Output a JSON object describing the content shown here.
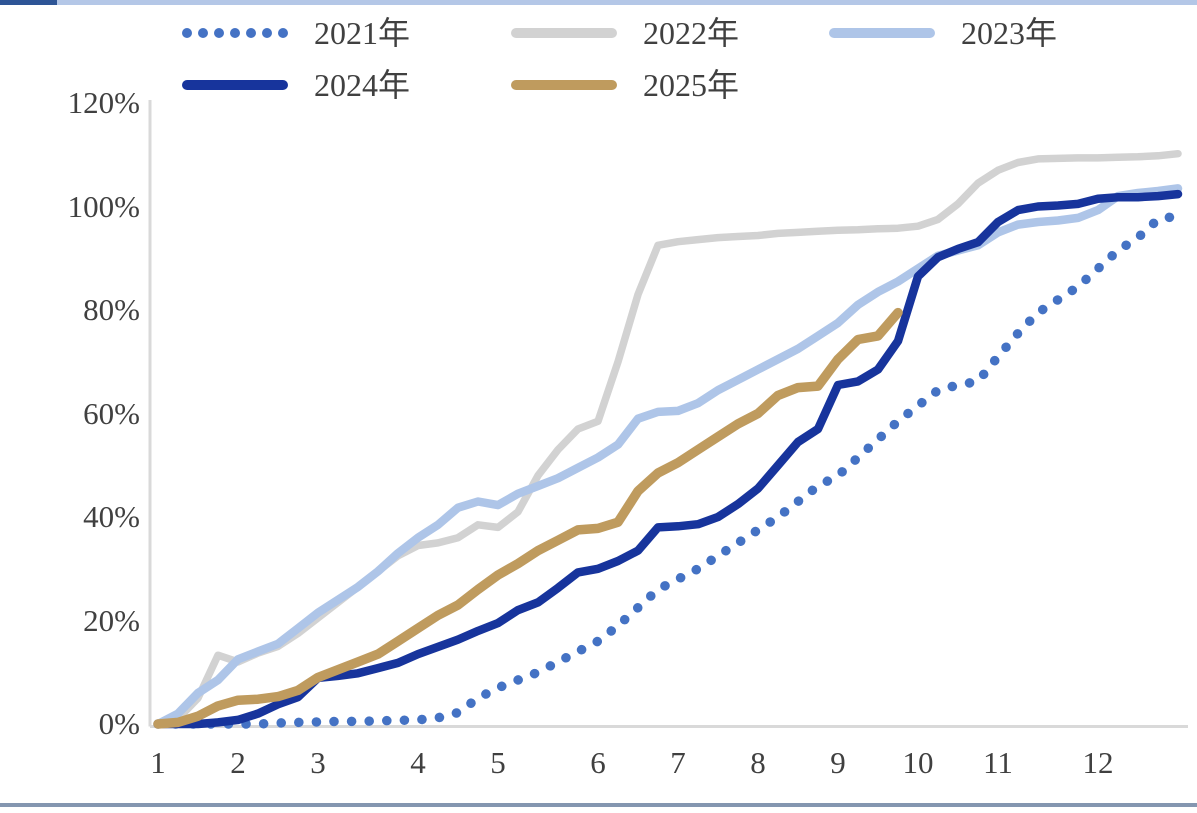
{
  "frame": {
    "top_bar_color": "#b4c7e7",
    "top_bar_accent_color": "#2e5596",
    "bottom_bar_color": "#8496b0",
    "axis_color": "#d9d9d9",
    "text_color": "#404040",
    "background": "#ffffff"
  },
  "chart_data": {
    "type": "line",
    "title": "",
    "xlabel": "",
    "ylabel": "",
    "x_axis": {
      "tick_labels": [
        "1",
        "2",
        "3",
        "4",
        "5",
        "6",
        "7",
        "8",
        "9",
        "10",
        "11",
        "12"
      ],
      "tick_weeks": [
        0,
        4,
        8,
        13,
        17,
        22,
        26,
        30,
        34,
        38,
        42,
        47
      ],
      "unit": "month-of-year, weekly samples"
    },
    "y_axis": {
      "tick_labels": [
        "0%",
        "20%",
        "40%",
        "60%",
        "80%",
        "100%",
        "120%"
      ],
      "tick_values": [
        0,
        20,
        40,
        60,
        80,
        100,
        120
      ],
      "range": [
        0,
        120
      ],
      "grid": false
    },
    "legend": {
      "position": "top-left",
      "rows": [
        [
          "2021年",
          "2022年",
          "2023年"
        ],
        [
          "2024年",
          "2025年"
        ]
      ]
    },
    "series": [
      {
        "name": "2021年",
        "color": "#4472c4",
        "style": "dotted",
        "line_width": 9.5,
        "weekly_values": [
          0,
          0,
          0,
          0,
          0,
          0,
          0.2,
          0.3,
          0.4,
          0.5,
          0.5,
          0.6,
          0.7,
          0.8,
          1.2,
          2.2,
          5,
          7,
          8.5,
          10,
          12,
          14,
          16,
          19,
          22.5,
          26,
          28,
          30,
          32.5,
          35,
          37.5,
          40,
          43,
          46,
          48,
          51.5,
          55,
          58.5,
          61.5,
          64.5,
          65.5,
          66.2,
          71,
          75.5,
          79.5,
          82,
          84.5,
          88,
          91.5,
          94,
          97.5,
          98.2
        ]
      },
      {
        "name": "2022年",
        "color": "#d2d2d2",
        "style": "solid",
        "line_width": 7.5,
        "weekly_values": [
          0,
          1,
          5,
          13.3,
          12,
          13.7,
          15,
          17.5,
          20.5,
          23.5,
          26.5,
          29.5,
          32.5,
          34.5,
          35,
          36,
          38.5,
          38,
          41,
          48,
          53,
          57,
          58.5,
          70,
          83,
          92.5,
          93.2,
          93.6,
          94,
          94.2,
          94.4,
          94.8,
          95,
          95.2,
          95.4,
          95.5,
          95.7,
          95.8,
          96.2,
          97.5,
          100.5,
          104.5,
          107,
          108.5,
          109.2,
          109.3,
          109.4,
          109.4,
          109.5,
          109.6,
          109.8,
          110.2
        ]
      },
      {
        "name": "2023年",
        "color": "#aec5e8",
        "style": "solid",
        "line_width": 8.5,
        "weekly_values": [
          0,
          2,
          6,
          8.5,
          12.5,
          14,
          15.5,
          18.5,
          21.5,
          24,
          26.5,
          29.5,
          33,
          36,
          38.5,
          41.8,
          43,
          42.3,
          44.5,
          46,
          47.5,
          49.5,
          51.5,
          54,
          59,
          60.3,
          60.5,
          62,
          64.5,
          66.5,
          68.5,
          70.5,
          72.5,
          75,
          77.5,
          81,
          83.5,
          85.5,
          88,
          90.5,
          91.5,
          92.5,
          95,
          96.5,
          97,
          97.3,
          97.8,
          99.3,
          102,
          102.6,
          103,
          103.5
        ]
      },
      {
        "name": "2024年",
        "color": "#17349c",
        "style": "solid",
        "line_width": 8.5,
        "weekly_values": [
          0,
          0,
          0,
          0.3,
          0.8,
          2,
          3.8,
          5.2,
          8.9,
          9.3,
          9.8,
          10.8,
          11.8,
          13.5,
          14.9,
          16.3,
          18,
          19.5,
          22,
          23.5,
          26.3,
          29.3,
          30,
          31.5,
          33.5,
          38,
          38.2,
          38.6,
          40,
          42.5,
          45.5,
          50,
          54.5,
          57,
          65.5,
          66.2,
          68.5,
          74,
          86.5,
          90.2,
          91.8,
          93.1,
          97,
          99.3,
          100,
          100.2,
          100.5,
          101.5,
          101.8,
          101.8,
          102,
          102.4
        ]
      },
      {
        "name": "2025年",
        "color": "#bf9b5e",
        "style": "solid",
        "line_width": 9.5,
        "weekly_values": [
          0,
          0.3,
          1.5,
          3.5,
          4.6,
          4.8,
          5.3,
          6.5,
          9,
          10.5,
          12,
          13.5,
          16,
          18.5,
          21,
          23,
          26,
          28.8,
          31,
          33.5,
          35.5,
          37.5,
          37.8,
          39,
          45,
          48.5,
          50.5,
          53,
          55.5,
          58,
          60,
          63.5,
          65,
          65.3,
          70.5,
          74.3,
          75,
          79.5
        ]
      }
    ]
  }
}
